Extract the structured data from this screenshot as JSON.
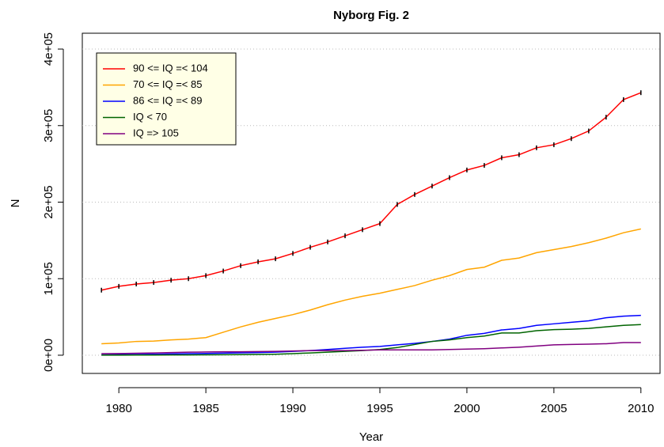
{
  "chart_data": {
    "type": "line",
    "title": "Nyborg Fig. 2",
    "x_label": "Year",
    "y_label": "N",
    "x": [
      1979,
      1980,
      1981,
      1982,
      1983,
      1984,
      1985,
      1986,
      1987,
      1988,
      1989,
      1990,
      1991,
      1992,
      1993,
      1994,
      1995,
      1996,
      1997,
      1998,
      1999,
      2000,
      2001,
      2002,
      2003,
      2004,
      2005,
      2006,
      2007,
      2008,
      2009,
      2010
    ],
    "series": [
      {
        "name": "90 <= IQ =< 104",
        "color": "#ff0000",
        "markers": true,
        "marker_color": "#000000",
        "values": [
          85000,
          90000,
          93000,
          95000,
          98000,
          100000,
          104000,
          110000,
          117000,
          122000,
          126000,
          133000,
          141000,
          148000,
          156000,
          164000,
          172000,
          197000,
          210000,
          221000,
          232000,
          242000,
          248000,
          258000,
          262000,
          271000,
          275000,
          283000,
          293000,
          311000,
          334000,
          343000
        ]
      },
      {
        "name": "70 <= IQ =< 85",
        "color": "#ffa500",
        "values": [
          15000,
          16000,
          18000,
          18500,
          20000,
          21000,
          23000,
          30000,
          37000,
          43000,
          48000,
          53000,
          59000,
          66000,
          72000,
          77000,
          81000,
          86000,
          91000,
          98000,
          104000,
          112000,
          115000,
          124000,
          127000,
          134000,
          138000,
          142000,
          147000,
          153000,
          160000,
          165000
        ]
      },
      {
        "name": "86 <= IQ =< 89",
        "color": "#0000ff",
        "values": [
          500,
          700,
          1000,
          1300,
          1600,
          2000,
          2300,
          2700,
          3100,
          3500,
          4000,
          5000,
          6000,
          7500,
          9000,
          10500,
          11500,
          13500,
          15500,
          18000,
          21000,
          26000,
          28500,
          33000,
          35000,
          39000,
          41000,
          43000,
          45000,
          49000,
          51000,
          52000
        ]
      },
      {
        "name": "IQ < 70",
        "color": "#006400",
        "values": [
          100,
          150,
          200,
          250,
          300,
          400,
          500,
          600,
          800,
          1000,
          1300,
          2000,
          3000,
          4000,
          5000,
          6000,
          7500,
          10000,
          14000,
          18000,
          20000,
          23000,
          25000,
          29000,
          29000,
          32000,
          33500,
          34000,
          35000,
          37000,
          39000,
          40000
        ]
      },
      {
        "name": "IQ => 105",
        "color": "#800080",
        "values": [
          2000,
          2200,
          2500,
          3000,
          3500,
          4000,
          4200,
          4500,
          4500,
          4700,
          5000,
          5500,
          6000,
          6000,
          6000,
          6500,
          7000,
          7000,
          7000,
          7000,
          7500,
          8000,
          8500,
          9500,
          10500,
          12000,
          13500,
          14000,
          14500,
          15000,
          16500,
          16500
        ]
      }
    ],
    "xlim": [
      1977.9,
      2011.1
    ],
    "xticks": [
      1980,
      1985,
      1990,
      1995,
      2000,
      2005,
      2010
    ],
    "ylim": [
      -23800,
      420700
    ],
    "yticks": [
      {
        "value": 0,
        "label": "0e+00"
      },
      {
        "value": 100000,
        "label": "1e+05"
      },
      {
        "value": 200000,
        "label": "2e+05"
      },
      {
        "value": 300000,
        "label": "3e+05"
      },
      {
        "value": 400000,
        "label": "4e+05"
      }
    ],
    "grid": true,
    "legend_position": "top-left"
  }
}
